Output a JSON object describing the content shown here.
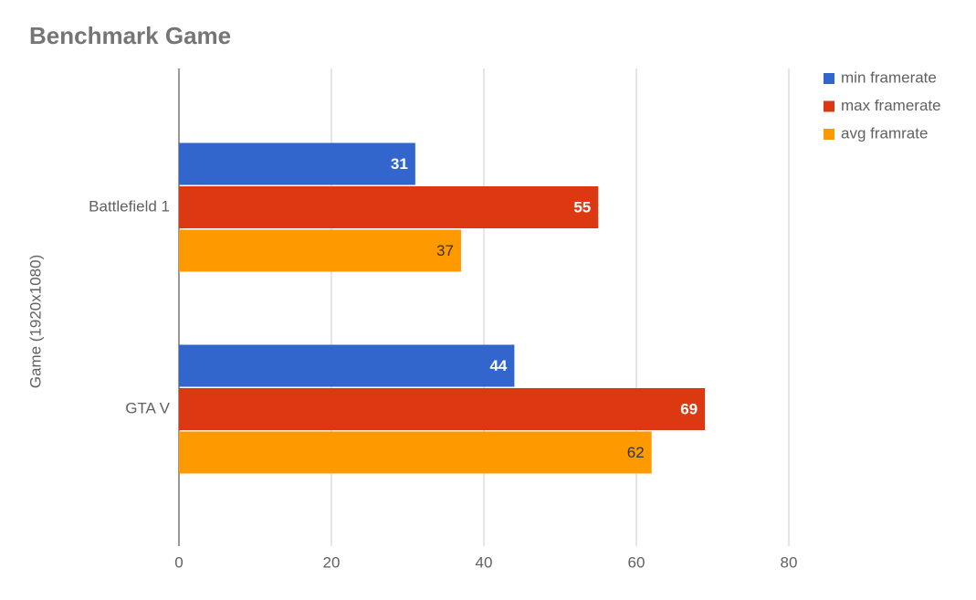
{
  "chart_data": {
    "type": "hbar",
    "title": "Benchmark Game",
    "y_label": "Game (1920x1080)",
    "categories": [
      "Battlefield 1",
      "GTA V"
    ],
    "series": [
      {
        "name": "min framerate",
        "color": "#3366cc",
        "label_color": "#ffffff",
        "values": [
          31,
          44
        ]
      },
      {
        "name": "max framerate",
        "color": "#dc3912",
        "label_color": "#ffffff",
        "values": [
          55,
          69
        ]
      },
      {
        "name": "avg framrate",
        "color": "#ff9900",
        "label_color": "#333333",
        "values": [
          37,
          62
        ]
      }
    ],
    "xlim": [
      0,
      80
    ],
    "xticks": [
      0,
      20,
      40,
      60,
      80
    ],
    "grid": true,
    "legend": "top-right"
  }
}
